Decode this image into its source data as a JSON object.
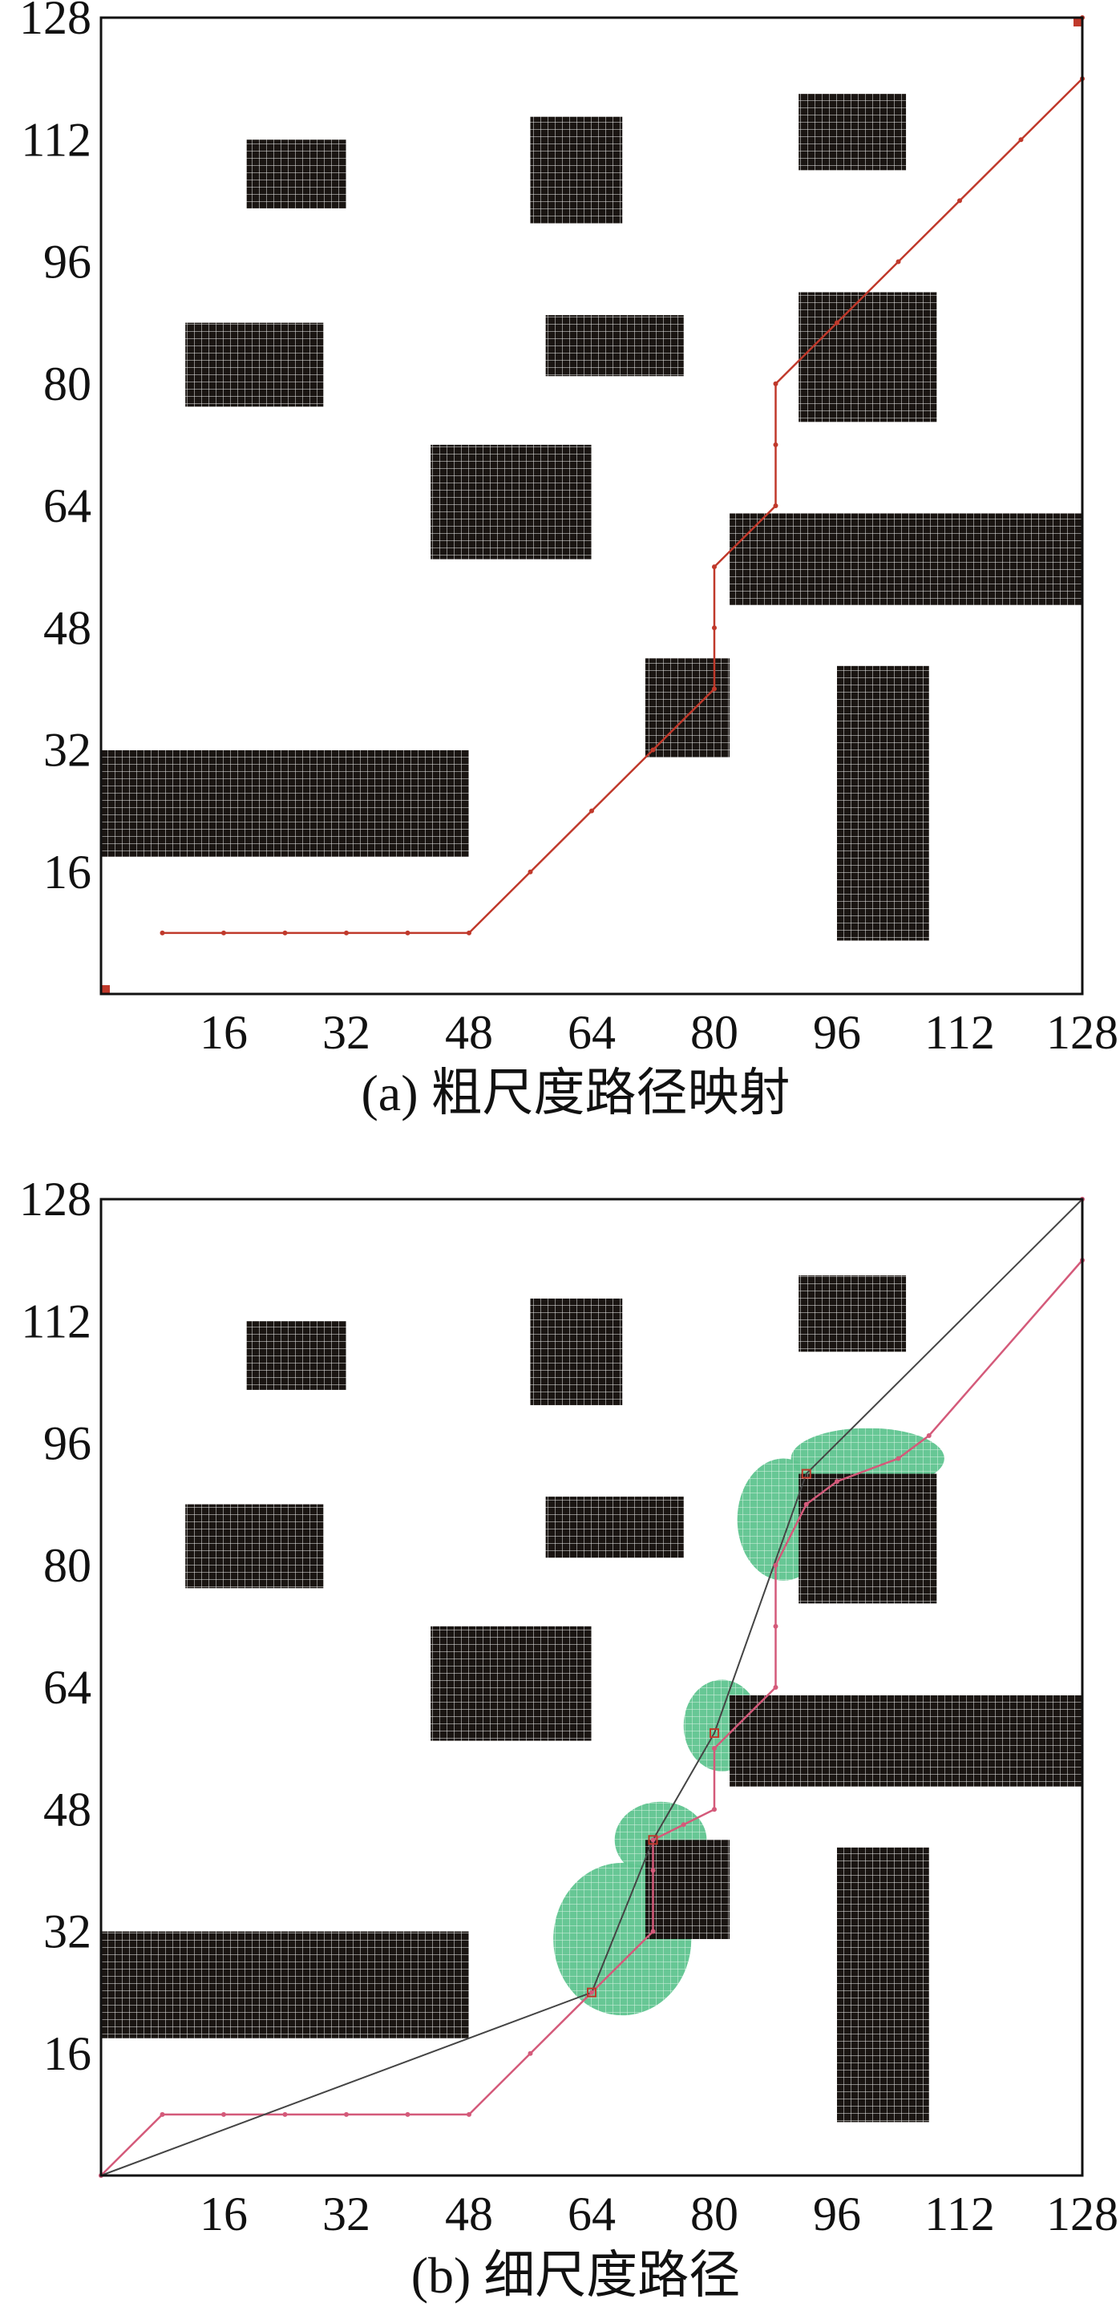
{
  "panels": [
    {
      "id": "a",
      "caption": "(a) 粗尺度路径映射",
      "x_ticks": [
        16,
        32,
        48,
        64,
        80,
        96,
        112,
        128
      ],
      "y_ticks": [
        16,
        32,
        48,
        64,
        80,
        96,
        112,
        128
      ],
      "grid_range": [
        0,
        128
      ],
      "obstacles": [
        {
          "x0": 0,
          "x1": 48,
          "y0": 18,
          "y1": 32
        },
        {
          "x0": 19,
          "x1": 32,
          "y0": 103,
          "y1": 112
        },
        {
          "x0": 11,
          "x1": 29,
          "y0": 77,
          "y1": 88
        },
        {
          "x0": 56,
          "x1": 68,
          "y0": 101,
          "y1": 115
        },
        {
          "x0": 58,
          "x1": 76,
          "y0": 81,
          "y1": 89
        },
        {
          "x0": 43,
          "x1": 64,
          "y0": 57,
          "y1": 72
        },
        {
          "x0": 71,
          "x1": 82,
          "y0": 31,
          "y1": 44
        },
        {
          "x0": 82,
          "x1": 129,
          "y0": 51,
          "y1": 63
        },
        {
          "x0": 91,
          "x1": 105,
          "y0": 108,
          "y1": 118
        },
        {
          "x0": 91,
          "x1": 109,
          "y0": 75,
          "y1": 92
        },
        {
          "x0": 96,
          "x1": 108,
          "y0": 7,
          "y1": 43
        }
      ],
      "coarse_path": [
        [
          8,
          8
        ],
        [
          16,
          8
        ],
        [
          24,
          8
        ],
        [
          32,
          8
        ],
        [
          40,
          8
        ],
        [
          48,
          8
        ],
        [
          56,
          16
        ],
        [
          64,
          24
        ],
        [
          72,
          32
        ],
        [
          80,
          40
        ],
        [
          80,
          48
        ],
        [
          80,
          56
        ],
        [
          88,
          64
        ],
        [
          88,
          72
        ],
        [
          88,
          80
        ],
        [
          96,
          88
        ],
        [
          104,
          96
        ],
        [
          112,
          104
        ],
        [
          120,
          112
        ],
        [
          128,
          120
        ],
        [
          128,
          128
        ]
      ],
      "start": [
        0,
        0
      ],
      "goal": [
        128,
        128
      ]
    },
    {
      "id": "b",
      "caption": "(b) 细尺度路径",
      "x_ticks": [
        16,
        32,
        48,
        64,
        80,
        96,
        112,
        128
      ],
      "y_ticks": [
        16,
        32,
        48,
        64,
        80,
        96,
        112,
        128
      ],
      "grid_range": [
        0,
        128
      ],
      "coarse_path": [
        [
          0,
          0
        ],
        [
          8,
          8
        ],
        [
          16,
          8
        ],
        [
          24,
          8
        ],
        [
          32,
          8
        ],
        [
          40,
          8
        ],
        [
          48,
          8
        ],
        [
          56,
          16
        ],
        [
          64,
          24
        ],
        [
          72,
          32
        ],
        [
          72,
          40
        ],
        [
          72,
          44
        ],
        [
          76,
          46
        ],
        [
          80,
          48
        ],
        [
          80,
          56
        ],
        [
          88,
          64
        ],
        [
          88,
          72
        ],
        [
          88,
          80
        ],
        [
          92,
          88
        ],
        [
          96,
          91
        ],
        [
          104,
          94
        ],
        [
          108,
          97
        ],
        [
          128,
          120
        ],
        [
          128,
          128
        ]
      ],
      "fine_path": [
        [
          0,
          0
        ],
        [
          64,
          24
        ],
        [
          72,
          44
        ],
        [
          80,
          58
        ],
        [
          92,
          92
        ],
        [
          128,
          128
        ]
      ],
      "search_regions": [
        {
          "cx": 68,
          "cy": 31,
          "rx": 9,
          "ry": 10
        },
        {
          "cx": 73,
          "cy": 44,
          "rx": 6,
          "ry": 5
        },
        {
          "cx": 81,
          "cy": 59,
          "rx": 5,
          "ry": 6
        },
        {
          "cx": 89,
          "cy": 86,
          "rx": 6,
          "ry": 8
        },
        {
          "cx": 100,
          "cy": 94,
          "rx": 10,
          "ry": 4
        }
      ]
    }
  ],
  "colors": {
    "obstacle": "#1a1512",
    "coarse_path_a": "#c0392b",
    "coarse_path_b": "#d45a7a",
    "fine_path": "#444444",
    "search_region": "#5fc48f"
  }
}
